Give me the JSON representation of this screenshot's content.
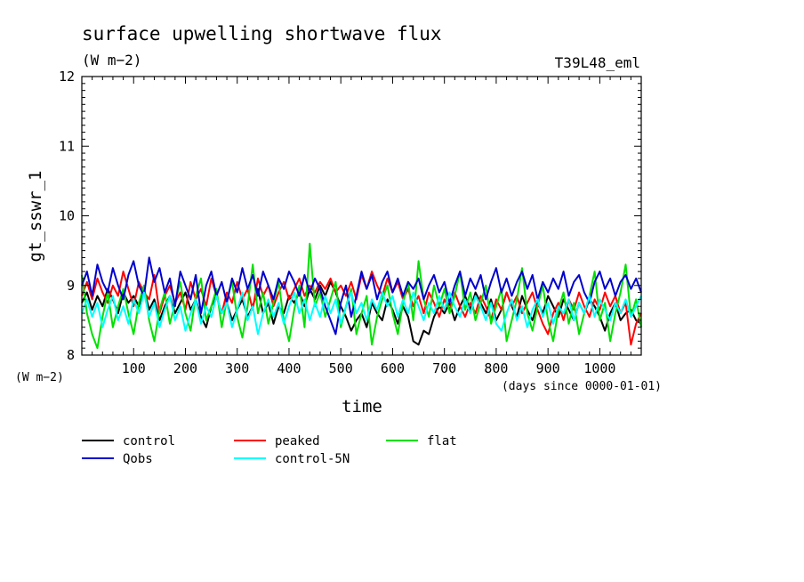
{
  "chart_data": {
    "type": "line",
    "title": "surface upwelling shortwave flux",
    "units_label": "(W m−2)",
    "run_label": "T39L48_eml",
    "ylabel": "gt_sswr_1",
    "y_unit_label": "(W m−2)",
    "xlabel": "time",
    "x_unit_label": "(days since 0000-01-01)",
    "xlim": [
      0,
      1080
    ],
    "ylim": [
      8,
      12
    ],
    "x_ticks": [
      100,
      200,
      300,
      400,
      500,
      600,
      700,
      800,
      900,
      1000
    ],
    "y_ticks": [
      8,
      9,
      10,
      11,
      12
    ],
    "x_start": 0,
    "x_step": 10,
    "legend": {
      "placement": "bottom"
    },
    "series": [
      {
        "name": "control",
        "color": "#000000",
        "values": [
          8.75,
          8.9,
          8.65,
          8.85,
          8.7,
          8.95,
          8.8,
          8.6,
          8.9,
          8.75,
          8.85,
          8.7,
          8.95,
          8.65,
          8.8,
          8.5,
          8.7,
          8.85,
          8.6,
          8.75,
          8.9,
          8.65,
          8.8,
          8.55,
          8.4,
          8.7,
          8.85,
          8.6,
          8.75,
          8.5,
          8.65,
          8.8,
          8.55,
          8.7,
          8.95,
          8.6,
          8.75,
          8.45,
          8.7,
          8.6,
          8.85,
          8.75,
          8.9,
          8.7,
          8.95,
          8.8,
          9.0,
          8.85,
          9.05,
          8.9,
          8.7,
          8.55,
          8.35,
          8.5,
          8.6,
          8.4,
          8.75,
          8.6,
          8.5,
          8.8,
          8.65,
          8.45,
          8.7,
          8.55,
          8.2,
          8.15,
          8.35,
          8.3,
          8.55,
          8.7,
          8.6,
          8.75,
          8.5,
          8.7,
          8.85,
          8.65,
          8.9,
          8.75,
          8.6,
          8.8,
          8.5,
          8.65,
          8.9,
          8.7,
          8.55,
          8.85,
          8.65,
          8.5,
          8.75,
          8.6,
          8.85,
          8.7,
          8.55,
          8.8,
          8.65,
          8.5,
          8.75,
          8.6,
          8.8,
          8.7,
          8.55,
          8.35,
          8.6,
          8.75,
          8.5,
          8.6,
          8.65,
          8.5,
          8.45
        ]
      },
      {
        "name": "peaked",
        "color": "#ff0000",
        "values": [
          8.85,
          9.05,
          8.8,
          9.1,
          8.9,
          8.75,
          9.0,
          8.85,
          9.2,
          8.95,
          8.7,
          9.05,
          8.9,
          8.8,
          9.15,
          8.6,
          8.85,
          9.0,
          8.75,
          8.9,
          8.65,
          9.05,
          8.8,
          8.95,
          8.7,
          9.1,
          8.85,
          8.6,
          8.9,
          8.75,
          9.05,
          8.8,
          8.95,
          8.65,
          9.1,
          8.85,
          9.0,
          8.7,
          8.9,
          9.05,
          8.8,
          8.95,
          9.1,
          8.85,
          9.0,
          8.9,
          9.05,
          8.95,
          9.1,
          8.9,
          9.0,
          8.85,
          9.05,
          8.8,
          9.15,
          8.95,
          9.2,
          9.0,
          8.85,
          9.1,
          8.9,
          9.05,
          8.8,
          8.95,
          8.7,
          8.85,
          8.6,
          8.9,
          8.75,
          8.55,
          8.8,
          8.65,
          8.9,
          8.7,
          8.55,
          8.75,
          8.6,
          8.85,
          8.7,
          8.5,
          8.8,
          8.65,
          8.9,
          8.7,
          8.85,
          8.6,
          8.75,
          8.9,
          8.65,
          8.45,
          8.3,
          8.6,
          8.75,
          8.5,
          8.8,
          8.65,
          8.9,
          8.7,
          8.55,
          8.8,
          8.65,
          8.9,
          8.7,
          8.85,
          8.6,
          8.75,
          8.15,
          8.45,
          8.6
        ]
      },
      {
        "name": "flat",
        "color": "#00e000",
        "values": [
          9.15,
          8.6,
          8.3,
          8.1,
          8.55,
          8.9,
          8.4,
          8.7,
          8.95,
          8.6,
          8.3,
          8.75,
          9.0,
          8.5,
          8.2,
          8.65,
          8.9,
          8.45,
          8.75,
          9.05,
          8.6,
          8.35,
          8.85,
          9.1,
          8.5,
          8.7,
          8.95,
          8.4,
          8.8,
          9.05,
          8.55,
          8.25,
          8.7,
          9.3,
          8.6,
          8.9,
          8.45,
          8.75,
          9.05,
          8.5,
          8.2,
          8.65,
          9.0,
          8.4,
          9.6,
          8.7,
          8.9,
          8.55,
          8.8,
          9.05,
          8.4,
          8.7,
          8.95,
          8.3,
          8.6,
          8.85,
          8.15,
          8.55,
          8.8,
          9.0,
          8.6,
          8.3,
          8.75,
          9.05,
          8.5,
          9.35,
          8.8,
          8.55,
          9.0,
          8.7,
          8.95,
          8.6,
          8.85,
          9.2,
          8.65,
          8.9,
          8.5,
          8.75,
          9.0,
          8.45,
          8.7,
          8.95,
          8.2,
          8.5,
          8.8,
          9.25,
          8.6,
          8.35,
          8.7,
          9.0,
          8.5,
          8.2,
          8.65,
          8.9,
          8.45,
          8.75,
          8.3,
          8.6,
          8.85,
          9.2,
          8.5,
          8.75,
          8.2,
          8.6,
          8.9,
          9.3,
          8.55,
          8.8,
          8.4
        ]
      },
      {
        "name": "Qobs",
        "color": "#0000cc",
        "values": [
          9.0,
          9.2,
          8.85,
          9.3,
          9.05,
          8.9,
          9.25,
          9.0,
          8.8,
          9.15,
          9.35,
          9.0,
          8.85,
          9.4,
          9.05,
          9.25,
          8.9,
          9.1,
          8.7,
          9.2,
          9.0,
          8.8,
          9.15,
          8.6,
          9.0,
          9.2,
          8.85,
          9.05,
          8.75,
          9.1,
          8.9,
          9.25,
          8.95,
          9.15,
          8.85,
          9.2,
          9.0,
          8.8,
          9.1,
          8.95,
          9.2,
          9.05,
          8.85,
          9.15,
          8.9,
          9.1,
          8.95,
          8.7,
          8.5,
          8.3,
          8.75,
          9.0,
          8.55,
          8.85,
          9.2,
          8.95,
          9.15,
          8.8,
          9.05,
          9.2,
          8.9,
          9.1,
          8.85,
          9.05,
          8.95,
          9.1,
          8.8,
          9.0,
          9.15,
          8.9,
          9.05,
          8.75,
          9.0,
          9.2,
          8.85,
          9.1,
          8.95,
          9.15,
          8.8,
          9.05,
          9.25,
          8.9,
          9.1,
          8.85,
          9.05,
          9.2,
          8.95,
          9.15,
          8.8,
          9.05,
          8.9,
          9.1,
          8.95,
          9.2,
          8.85,
          9.05,
          9.15,
          8.9,
          8.75,
          9.05,
          9.2,
          8.95,
          9.1,
          8.85,
          9.05,
          9.15,
          8.95,
          9.1,
          8.9
        ]
      },
      {
        "name": "control-5N",
        "color": "#00ffff",
        "values": [
          8.6,
          8.8,
          8.55,
          8.75,
          8.4,
          8.65,
          8.85,
          8.5,
          8.7,
          8.45,
          8.8,
          8.6,
          8.9,
          8.55,
          8.75,
          8.4,
          8.65,
          8.85,
          8.5,
          8.7,
          8.35,
          8.6,
          8.8,
          8.45,
          8.7,
          8.55,
          8.85,
          8.6,
          8.75,
          8.4,
          8.65,
          8.9,
          8.5,
          8.7,
          8.3,
          8.6,
          8.8,
          8.55,
          8.75,
          8.45,
          8.7,
          8.9,
          8.6,
          8.8,
          8.5,
          8.75,
          8.55,
          8.85,
          8.6,
          8.8,
          8.45,
          8.7,
          8.9,
          8.6,
          8.75,
          8.5,
          8.8,
          8.65,
          8.9,
          8.7,
          8.85,
          8.55,
          8.8,
          8.6,
          8.9,
          8.7,
          8.5,
          8.75,
          8.6,
          8.85,
          8.65,
          8.9,
          8.7,
          8.55,
          8.8,
          8.6,
          8.85,
          8.7,
          8.5,
          8.75,
          8.45,
          8.35,
          8.6,
          8.8,
          8.5,
          8.7,
          8.4,
          8.65,
          8.8,
          8.55,
          8.75,
          8.45,
          8.7,
          8.6,
          8.8,
          8.5,
          8.75,
          8.6,
          8.85,
          8.55,
          8.8,
          8.65,
          8.5,
          8.75,
          8.6,
          8.8,
          8.55,
          8.7,
          8.85
        ]
      }
    ]
  }
}
